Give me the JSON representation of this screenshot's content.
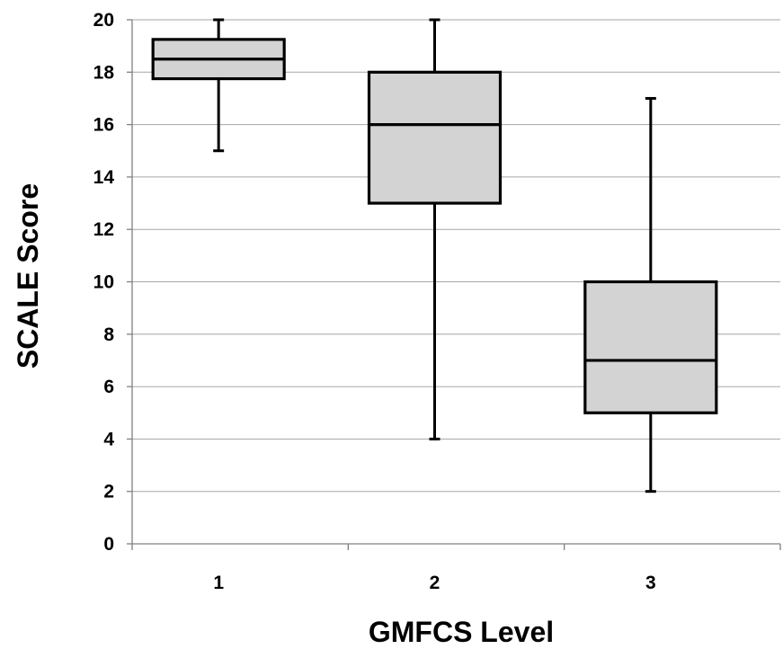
{
  "chart_data": {
    "type": "box",
    "xlabel": "GMFCS Level",
    "ylabel": "SCALE Score",
    "ylim": [
      0,
      20
    ],
    "yticks": [
      0,
      2,
      4,
      6,
      8,
      10,
      12,
      14,
      16,
      18,
      20
    ],
    "grid": true,
    "box_color": "#d3d3d3",
    "categories": [
      "1",
      "2",
      "3"
    ],
    "boxes": [
      {
        "category": "1",
        "min": 15,
        "q1": 17.75,
        "median": 18.5,
        "q3": 19.25,
        "max": 20
      },
      {
        "category": "2",
        "min": 4,
        "q1": 13,
        "median": 16,
        "q3": 18,
        "max": 20
      },
      {
        "category": "3",
        "min": 2,
        "q1": 5,
        "median": 7,
        "q3": 10,
        "max": 17
      }
    ]
  }
}
